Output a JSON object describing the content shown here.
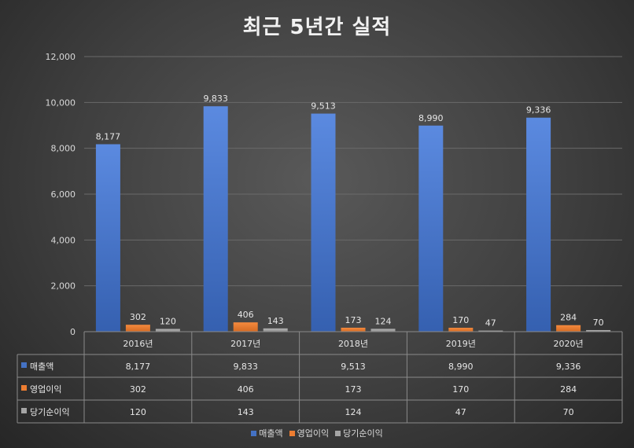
{
  "chart_data": {
    "type": "bar",
    "title": "최근 5년간 실적",
    "categories": [
      "2016년",
      "2017년",
      "2018년",
      "2019년",
      "2020년"
    ],
    "series": [
      {
        "name": "매출액",
        "values": [
          8177,
          9833,
          9513,
          8990,
          9336
        ],
        "labels": [
          "8,177",
          "9,833",
          "9,513",
          "8,990",
          "9,336"
        ],
        "color": "#4472c4"
      },
      {
        "name": "영업이익",
        "values": [
          302,
          406,
          173,
          170,
          284
        ],
        "labels": [
          "302",
          "406",
          "173",
          "170",
          "284"
        ],
        "color": "#ed7d31"
      },
      {
        "name": "당기순이익",
        "values": [
          120,
          143,
          124,
          47,
          70
        ],
        "labels": [
          "120",
          "143",
          "124",
          "47",
          "70"
        ],
        "color": "#a5a5a5"
      }
    ],
    "ylim": [
      0,
      12000
    ],
    "yticks": [
      "0",
      "2,000",
      "4,000",
      "6,000",
      "8,000",
      "10,000",
      "12,000"
    ],
    "grid": true,
    "legend": "bottom",
    "data_table": true
  }
}
